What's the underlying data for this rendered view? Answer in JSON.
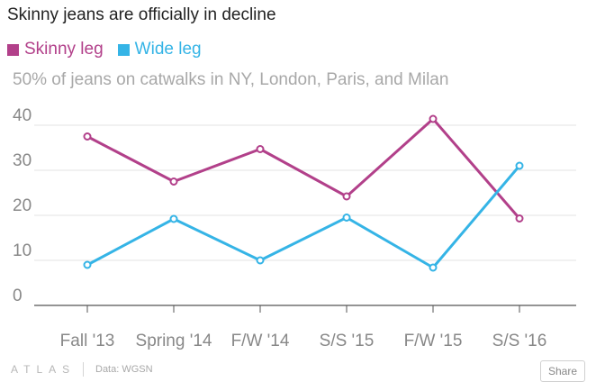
{
  "colors": {
    "skinny": "#b2408a",
    "wide": "#35b4e6",
    "grid": "#e3e3e3",
    "axis": "#555555",
    "tick_text": "#888888"
  },
  "chart_data": {
    "type": "line",
    "title": "Skinny jeans are officially in decline",
    "subtitle": "50% of jeans on catwalks in NY, London, Paris, and Milan",
    "categories": [
      "Fall '13",
      "Spring '14",
      "F/W '14",
      "S/S '15",
      "F/W '15",
      "S/S '16"
    ],
    "series": [
      {
        "name": "Skinny leg",
        "color": "#b2408a",
        "values": [
          37.5,
          27.5,
          34.7,
          24.2,
          41.4,
          19.3
        ]
      },
      {
        "name": "Wide leg",
        "color": "#35b4e6",
        "values": [
          9.0,
          19.2,
          10.0,
          19.5,
          8.4,
          31.0
        ]
      }
    ],
    "yticks": [
      0,
      10,
      20,
      30,
      40
    ],
    "ylim": [
      0,
      45
    ],
    "xlabel": "",
    "ylabel": "",
    "grid": true,
    "legend": "top-left"
  },
  "footer": {
    "brand": "ATLAS",
    "source": "Data: WGSN",
    "share_label": "Share"
  }
}
